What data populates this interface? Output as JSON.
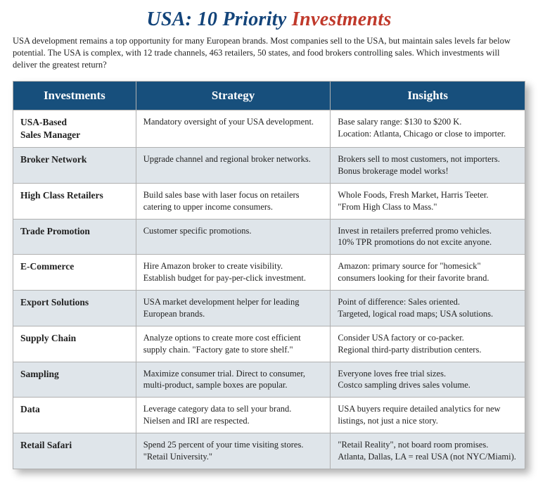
{
  "title": {
    "part1": "USA:",
    "part2": "10 Priority",
    "part3": "Investments",
    "color_usa": "#13447a",
    "color_mid": "#13447a",
    "color_last": "#c0392b"
  },
  "intro": "USA development remains a top opportunity for many European brands. Most companies sell to the USA, but maintain sales levels far below potential. The USA is complex, with 12 trade channels, 463 retailers, 50 states, and food brokers controlling sales. Which investments will deliver the greatest return?",
  "columns": {
    "investments": "Investments",
    "strategy": "Strategy",
    "insights": "Insights"
  },
  "header_bg": "#174f7c",
  "header_fg": "#ffffff",
  "row_alt_bg": "#dfe5ea",
  "row_plain_bg": "#ffffff",
  "border_color": "#b0b0b0",
  "rows": [
    {
      "investment": "USA-Based\nSales Manager",
      "strategy": "Mandatory oversight of your USA development.",
      "insights": "Base salary range: $130 to $200 K.\nLocation: Atlanta, Chicago or close to importer."
    },
    {
      "investment": "Broker Network",
      "strategy": "Upgrade channel and regional broker networks.",
      "insights": "Brokers sell to most customers, not importers.\nBonus brokerage model works!"
    },
    {
      "investment": "High Class Retailers",
      "strategy": "Build sales base with laser focus on retailers catering to upper income consumers.",
      "insights": "Whole Foods, Fresh Market, Harris Teeter.\n\"From High Class to Mass.\""
    },
    {
      "investment": "Trade Promotion",
      "strategy": "Customer specific promotions.",
      "insights": "Invest in retailers preferred promo vehicles.\n10% TPR promotions do not excite anyone."
    },
    {
      "investment": "E-Commerce",
      "strategy": "Hire Amazon broker to create visibility.\nEstablish budget for pay-per-click investment.",
      "insights": "Amazon: primary source for \"homesick\" consumers looking for their favorite brand."
    },
    {
      "investment": "Export Solutions",
      "strategy": "USA market development helper for leading European brands.",
      "insights": "Point of difference: Sales oriented.\nTargeted, logical road maps; USA solutions."
    },
    {
      "investment": "Supply Chain",
      "strategy": "Analyze options to create more cost efficient supply chain. \"Factory gate to store shelf.\"",
      "insights": "Consider USA factory or co-packer.\nRegional third-party distribution centers."
    },
    {
      "investment": "Sampling",
      "strategy": "Maximize consumer trial. Direct to consumer, multi-product, sample boxes are popular.",
      "insights": "Everyone loves free trial sizes.\nCostco sampling drives sales volume."
    },
    {
      "investment": "Data",
      "strategy": "Leverage category data to sell your brand.\nNielsen and IRI are respected.",
      "insights": "USA buyers require detailed analytics for new listings, not just a nice story."
    },
    {
      "investment": "Retail Safari",
      "strategy": "Spend 25 percent of your time visiting stores.\n\"Retail University.\"",
      "insights": "\"Retail Reality\", not board room promises.\nAtlanta, Dallas, LA = real USA (not NYC/Miami)."
    }
  ]
}
